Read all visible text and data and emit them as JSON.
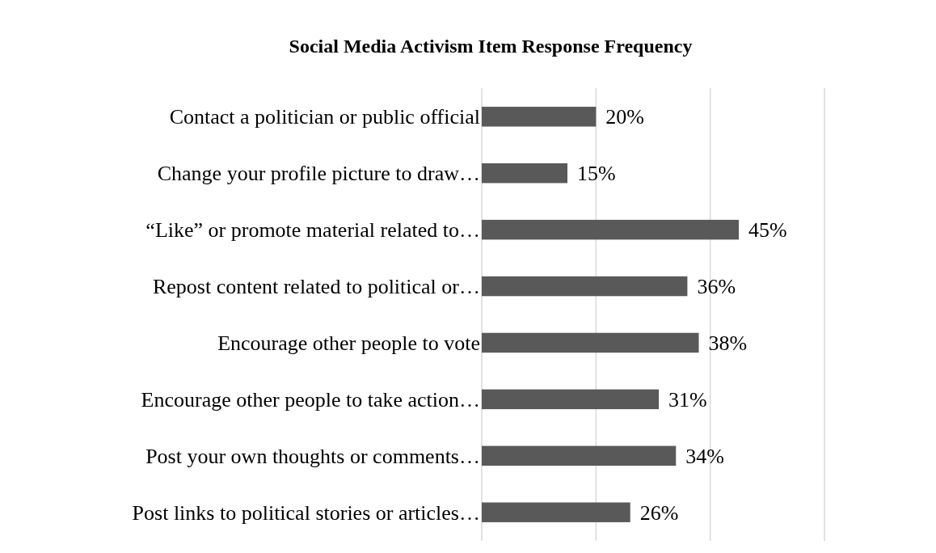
{
  "chart_data": {
    "type": "bar",
    "orientation": "horizontal",
    "title": "Social Media Activism Item Response Frequency",
    "categories": [
      "Contact a politician or public official",
      "Change your profile picture to draw…",
      "“Like” or promote material related to…",
      "Repost content related to political or…",
      "Encourage other people to vote",
      "Encourage other people to take action…",
      "Post your own thoughts or comments…",
      "Post links to political stories or articles…"
    ],
    "values": [
      20,
      15,
      45,
      36,
      38,
      31,
      34,
      26
    ],
    "value_labels": [
      "20%",
      "15%",
      "45%",
      "36%",
      "38%",
      "31%",
      "34%",
      "26%"
    ],
    "color": "#595959",
    "xlim": [
      0,
      60
    ],
    "xticks": [
      {
        "value": 0,
        "label": null
      },
      {
        "value": 20,
        "label": null
      },
      {
        "value": 40,
        "label": null
      },
      {
        "value": 60,
        "label": null
      }
    ],
    "grid": "x",
    "tick_labels": false
  }
}
